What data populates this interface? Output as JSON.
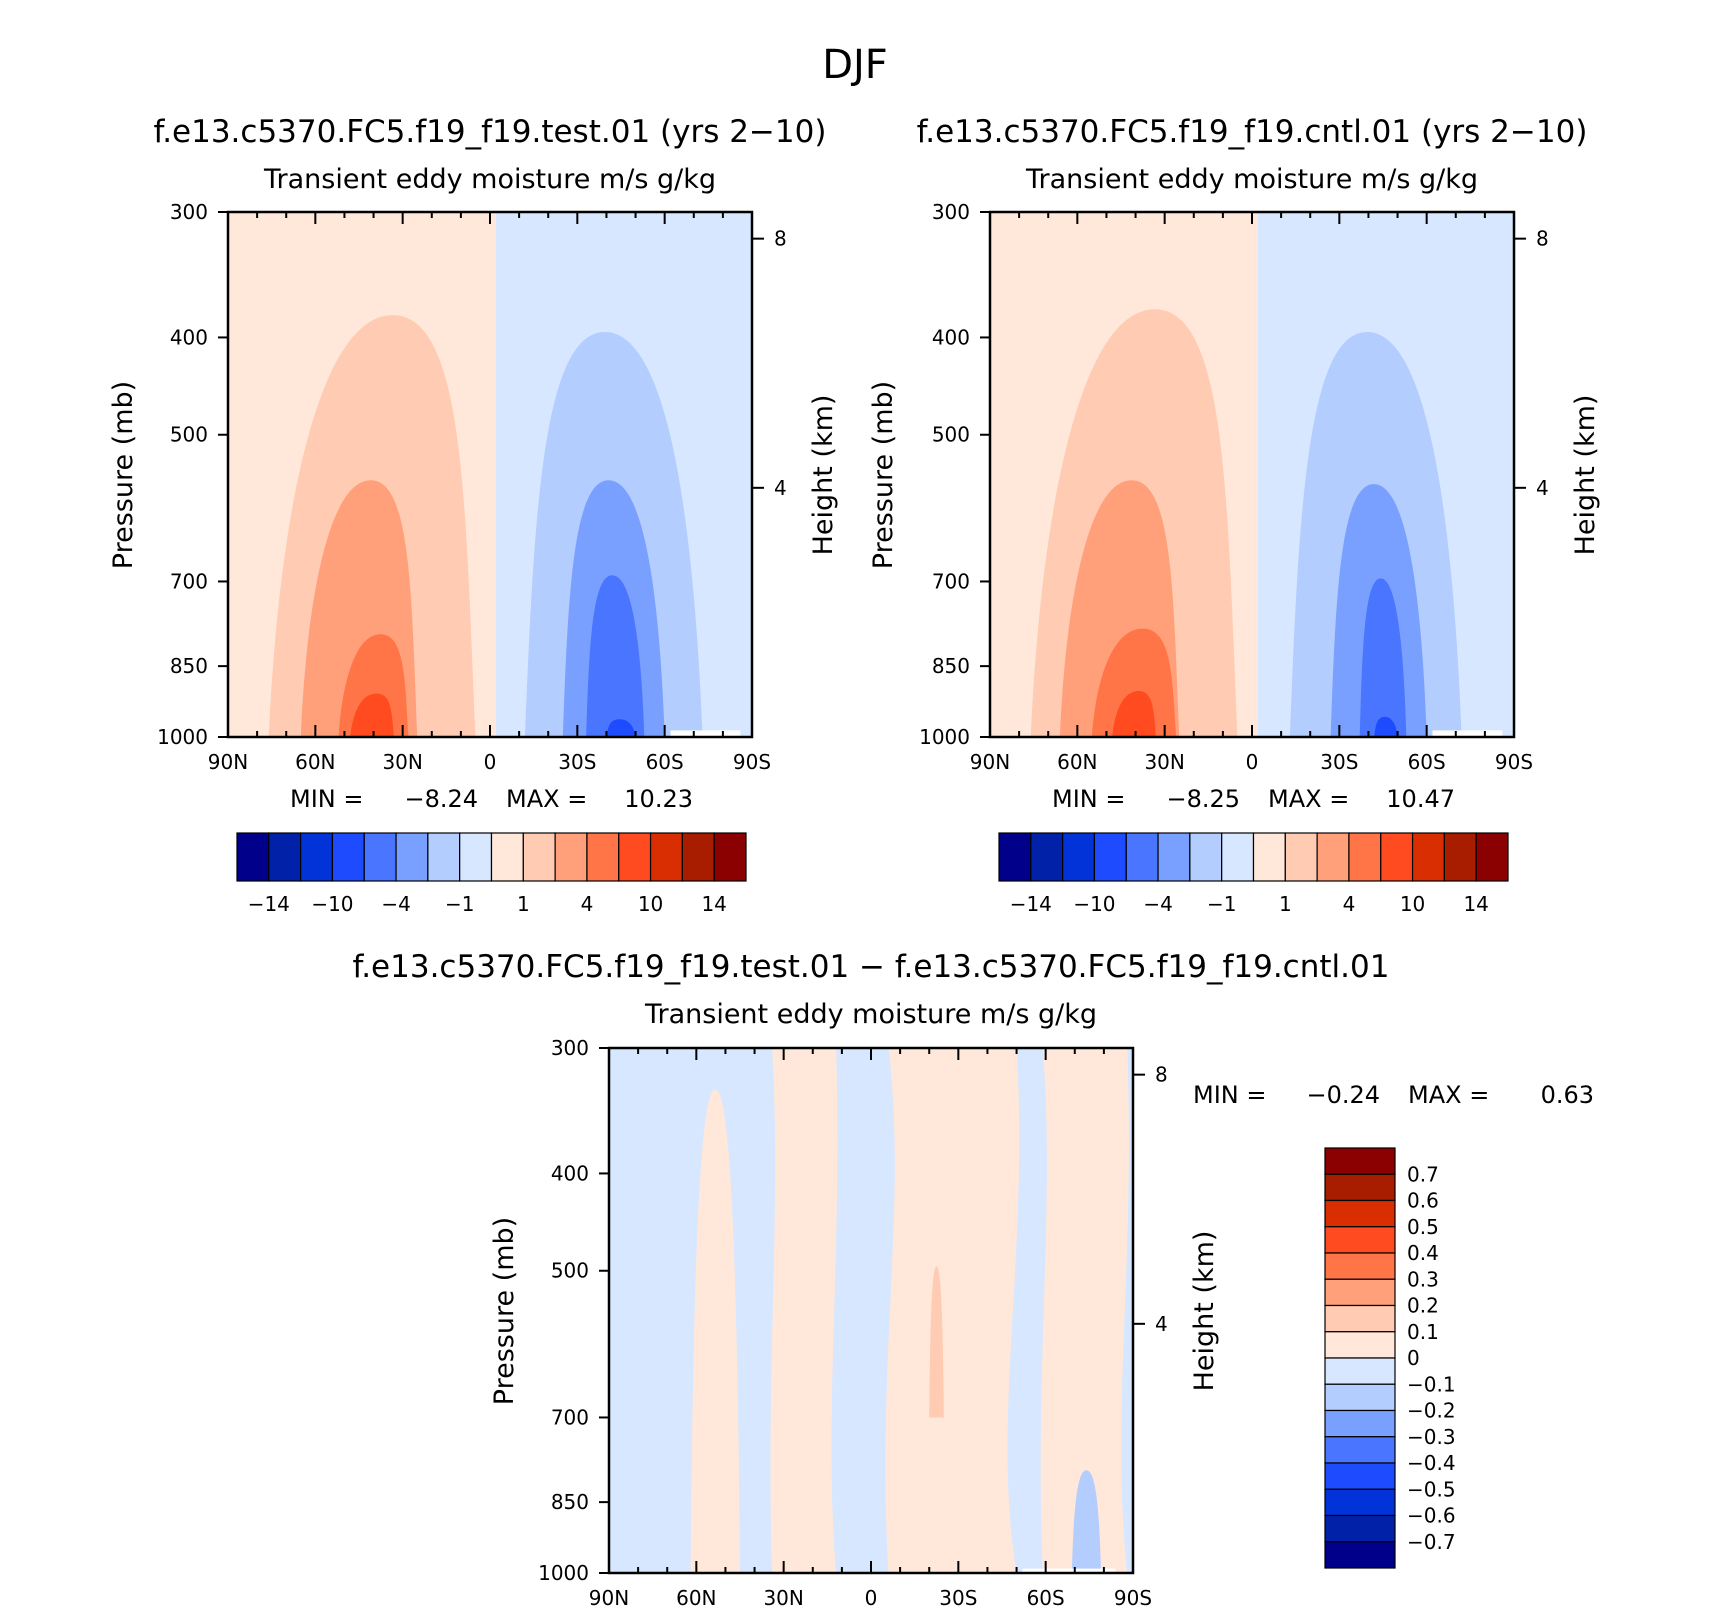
{
  "figure": {
    "title": "DJF"
  },
  "colors": {
    "full_levels": [
      "#00008b",
      "#0021a8",
      "#0233d9",
      "#1f4bff",
      "#4a75ff",
      "#7aa0ff",
      "#b3cdff",
      "#d6e7ff",
      "#ffe8d9",
      "#ffcbb3",
      "#ffa07a",
      "#ff7548",
      "#ff4b1f",
      "#d92e02",
      "#a81c00",
      "#8b0000"
    ],
    "diff_levels": [
      "#00008b",
      "#0021a8",
      "#0233d9",
      "#1f4bff",
      "#4a75ff",
      "#7aa0ff",
      "#b3cdff",
      "#d6e7ff",
      "#ffe8d9",
      "#ffcbb3",
      "#ffa07a",
      "#ff7548",
      "#ff4b1f",
      "#d92e02",
      "#a81c00",
      "#8b0000"
    ]
  },
  "chart_data": [
    {
      "type": "heatmap",
      "title": "f.e13.c5370.FC5.f19_f19.test.01 (yrs 2−10)",
      "subtitle": "Transient eddy moisture m/s g/kg",
      "ylabel": "Pressure (mb)",
      "ylabel_right": "Height (km)",
      "x_ticks": [
        "90N",
        "60N",
        "30N",
        "0",
        "30S",
        "60S",
        "90S"
      ],
      "x_values": [
        90,
        60,
        30,
        0,
        -30,
        -60,
        -90
      ],
      "xlim": [
        90,
        -90
      ],
      "y_ticks": [
        "300",
        "400",
        "500",
        "700",
        "850",
        "1000"
      ],
      "y_values": [
        300,
        400,
        500,
        700,
        850,
        1000
      ],
      "ylim": [
        1000,
        300
      ],
      "y_scale": "log",
      "height_ticks": [
        "8",
        "4"
      ],
      "height_values": [
        8,
        4
      ],
      "stats": {
        "min_label": "MIN =",
        "min": "−8.24",
        "max_label": "MAX =",
        "max": "10.23"
      },
      "colorbar": {
        "orientation": "horizontal",
        "levels": [
          -14,
          -12,
          -10,
          -7,
          -4,
          -2,
          -1,
          0,
          1,
          2,
          4,
          7,
          10,
          12,
          14
        ],
        "tick_labels": [
          "−14",
          "−10",
          "−4",
          "−1",
          "1",
          "4",
          "10",
          "14"
        ]
      },
      "contours": [
        {
          "level": 1,
          "approx_lat": [
            76,
            5
          ],
          "approx_top_mb": 380
        },
        {
          "level": 2,
          "approx_lat": [
            65,
            25
          ],
          "approx_top_mb": 555
        },
        {
          "level": 4,
          "approx_lat": [
            52,
            28
          ],
          "approx_top_mb": 790
        },
        {
          "level": 7,
          "approx_lat": [
            48,
            33
          ],
          "approx_top_mb": 905
        },
        {
          "level": -1,
          "approx_lat": [
            -12,
            -73
          ],
          "approx_top_mb": 395
        },
        {
          "level": -2,
          "approx_lat": [
            -25,
            -60
          ],
          "approx_top_mb": 555
        },
        {
          "level": -4,
          "approx_lat": [
            -33,
            -53
          ],
          "approx_top_mb": 690
        },
        {
          "level": -7,
          "approx_lat": [
            -40,
            -50
          ],
          "approx_top_mb": 960
        }
      ]
    },
    {
      "type": "heatmap",
      "title": "f.e13.c5370.FC5.f19_f19.cntl.01 (yrs 2−10)",
      "subtitle": "Transient eddy moisture m/s g/kg",
      "ylabel": "Pressure (mb)",
      "ylabel_right": "Height (km)",
      "x_ticks": [
        "90N",
        "60N",
        "30N",
        "0",
        "30S",
        "60S",
        "90S"
      ],
      "x_values": [
        90,
        60,
        30,
        0,
        -30,
        -60,
        -90
      ],
      "xlim": [
        90,
        -90
      ],
      "y_ticks": [
        "300",
        "400",
        "500",
        "700",
        "850",
        "1000"
      ],
      "y_values": [
        300,
        400,
        500,
        700,
        850,
        1000
      ],
      "ylim": [
        1000,
        300
      ],
      "y_scale": "log",
      "height_ticks": [
        "8",
        "4"
      ],
      "height_values": [
        8,
        4
      ],
      "stats": {
        "min_label": "MIN =",
        "min": "−8.25",
        "max_label": "MAX =",
        "max": "10.47"
      },
      "colorbar": {
        "orientation": "horizontal",
        "levels": [
          -14,
          -12,
          -10,
          -7,
          -4,
          -2,
          -1,
          0,
          1,
          2,
          4,
          7,
          10,
          12,
          14
        ],
        "tick_labels": [
          "−14",
          "−10",
          "−4",
          "−1",
          "1",
          "4",
          "10",
          "14"
        ]
      },
      "contours": [
        {
          "level": 1,
          "approx_lat": [
            76,
            5
          ],
          "approx_top_mb": 375
        },
        {
          "level": 2,
          "approx_lat": [
            66,
            25
          ],
          "approx_top_mb": 555
        },
        {
          "level": 4,
          "approx_lat": [
            55,
            26
          ],
          "approx_top_mb": 780
        },
        {
          "level": 7,
          "approx_lat": [
            48,
            33
          ],
          "approx_top_mb": 900
        },
        {
          "level": -1,
          "approx_lat": [
            -13,
            -72
          ],
          "approx_top_mb": 395
        },
        {
          "level": -2,
          "approx_lat": [
            -27,
            -60
          ],
          "approx_top_mb": 560
        },
        {
          "level": -4,
          "approx_lat": [
            -37,
            -53
          ],
          "approx_top_mb": 695
        },
        {
          "level": -7,
          "approx_lat": [
            -42,
            -50
          ],
          "approx_top_mb": 955
        }
      ]
    },
    {
      "type": "heatmap",
      "title": "f.e13.c5370.FC5.f19_f19.test.01 − f.e13.c5370.FC5.f19_f19.cntl.01",
      "subtitle": "Transient eddy moisture m/s g/kg",
      "ylabel": "Pressure (mb)",
      "ylabel_right": "Height (km)",
      "x_ticks": [
        "90N",
        "60N",
        "30N",
        "0",
        "30S",
        "60S",
        "90S"
      ],
      "x_values": [
        90,
        60,
        30,
        0,
        -30,
        -60,
        -90
      ],
      "xlim": [
        90,
        -90
      ],
      "y_ticks": [
        "300",
        "400",
        "500",
        "700",
        "850",
        "1000"
      ],
      "y_values": [
        300,
        400,
        500,
        700,
        850,
        1000
      ],
      "ylim": [
        1000,
        300
      ],
      "y_scale": "log",
      "height_ticks": [
        "8",
        "4"
      ],
      "height_values": [
        8,
        4
      ],
      "stats": {
        "min_label": "MIN =",
        "min": "−0.24",
        "max_label": "MAX =",
        "max": "0.63"
      },
      "colorbar": {
        "orientation": "vertical",
        "levels": [
          0.7,
          0.6,
          0.5,
          0.4,
          0.3,
          0.2,
          0.1,
          0,
          -0.1,
          -0.2,
          -0.3,
          -0.4,
          -0.5,
          -0.6,
          -0.7
        ],
        "tick_labels": [
          "0.7",
          "0.6",
          "0.5",
          "0.4",
          "0.3",
          "0.2",
          "0.1",
          "0",
          "−0.1",
          "−0.2",
          "−0.3",
          "−0.4",
          "−0.5",
          "−0.6",
          "−0.7"
        ]
      },
      "bands": [
        {
          "level": 0.1,
          "approx_lat": [
            62,
            45
          ],
          "approx_top_mb": 330
        },
        {
          "level": 0.1,
          "approx_lat": [
            34,
            12
          ],
          "approx_top_mb": 300
        },
        {
          "level": 0.1,
          "approx_lat": [
            -6,
            -50
          ],
          "approx_top_mb": 300
        },
        {
          "level": 0.1,
          "approx_lat": [
            -59,
            -88
          ],
          "approx_top_mb": 300
        },
        {
          "level": 0.2,
          "approx_lat": [
            -20,
            -25
          ],
          "approx_top_mb": 495
        },
        {
          "level": -0.1,
          "approx_lat": [
            -69,
            -79
          ],
          "approx_top_mb": 790
        }
      ]
    }
  ]
}
